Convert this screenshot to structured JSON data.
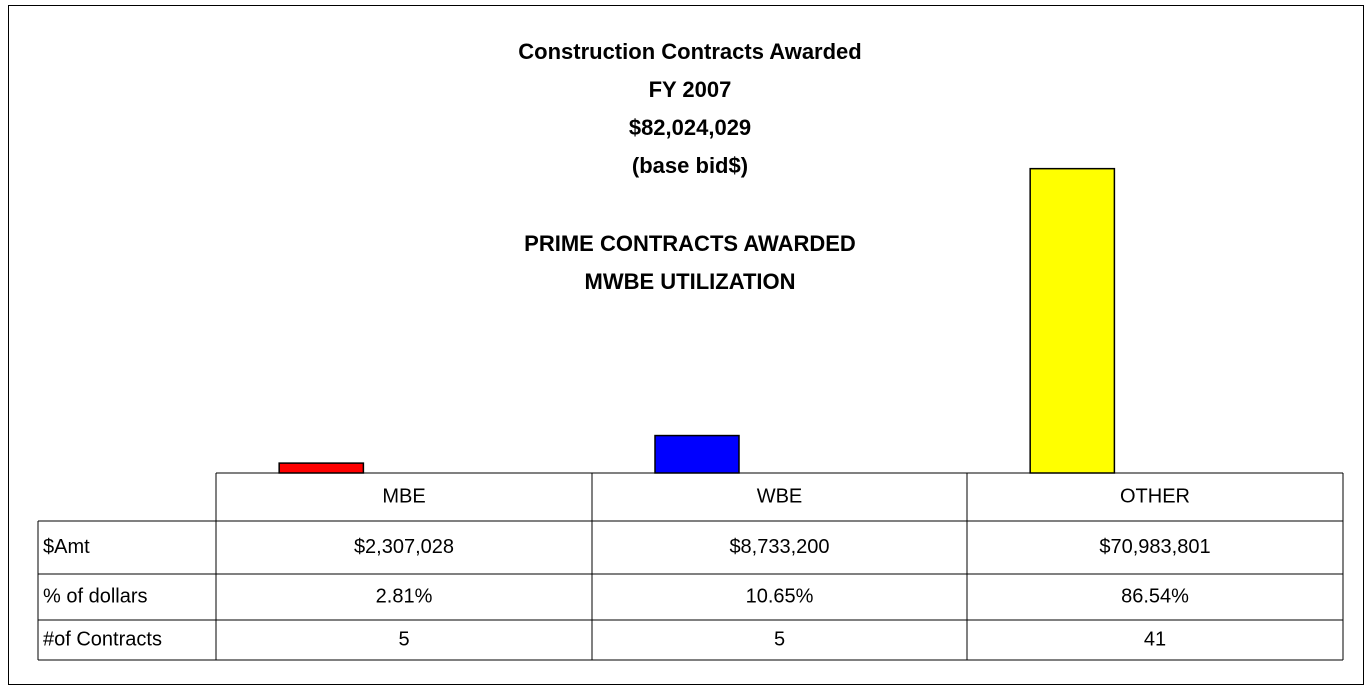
{
  "chart_data": {
    "type": "bar",
    "title": [
      "Construction Contracts Awarded",
      "FY 2007",
      "$82,024,029",
      "(base bid$)"
    ],
    "subtitle": [
      "PRIME CONTRACTS AWARDED",
      "MWBE UTILIZATION"
    ],
    "categories": [
      "MBE",
      "WBE",
      "OTHER"
    ],
    "colors": [
      "#ff0000",
      "#0000ff",
      "#ffff00"
    ],
    "ylim": [
      0,
      80000000
    ],
    "series": [
      {
        "name": "$Amt",
        "values": [
          2307028,
          8733200,
          70983801
        ],
        "value_labels": [
          "$2,307,028",
          "$8,733,200",
          "$70,983,801"
        ]
      }
    ],
    "table_rows": [
      {
        "name": "% of dollars",
        "values": [
          2.81,
          10.65,
          86.54
        ],
        "value_labels": [
          "2.81%",
          "10.65%",
          "86.54%"
        ]
      },
      {
        "name": "#of Contracts",
        "values": [
          5,
          5,
          41
        ]
      }
    ]
  }
}
